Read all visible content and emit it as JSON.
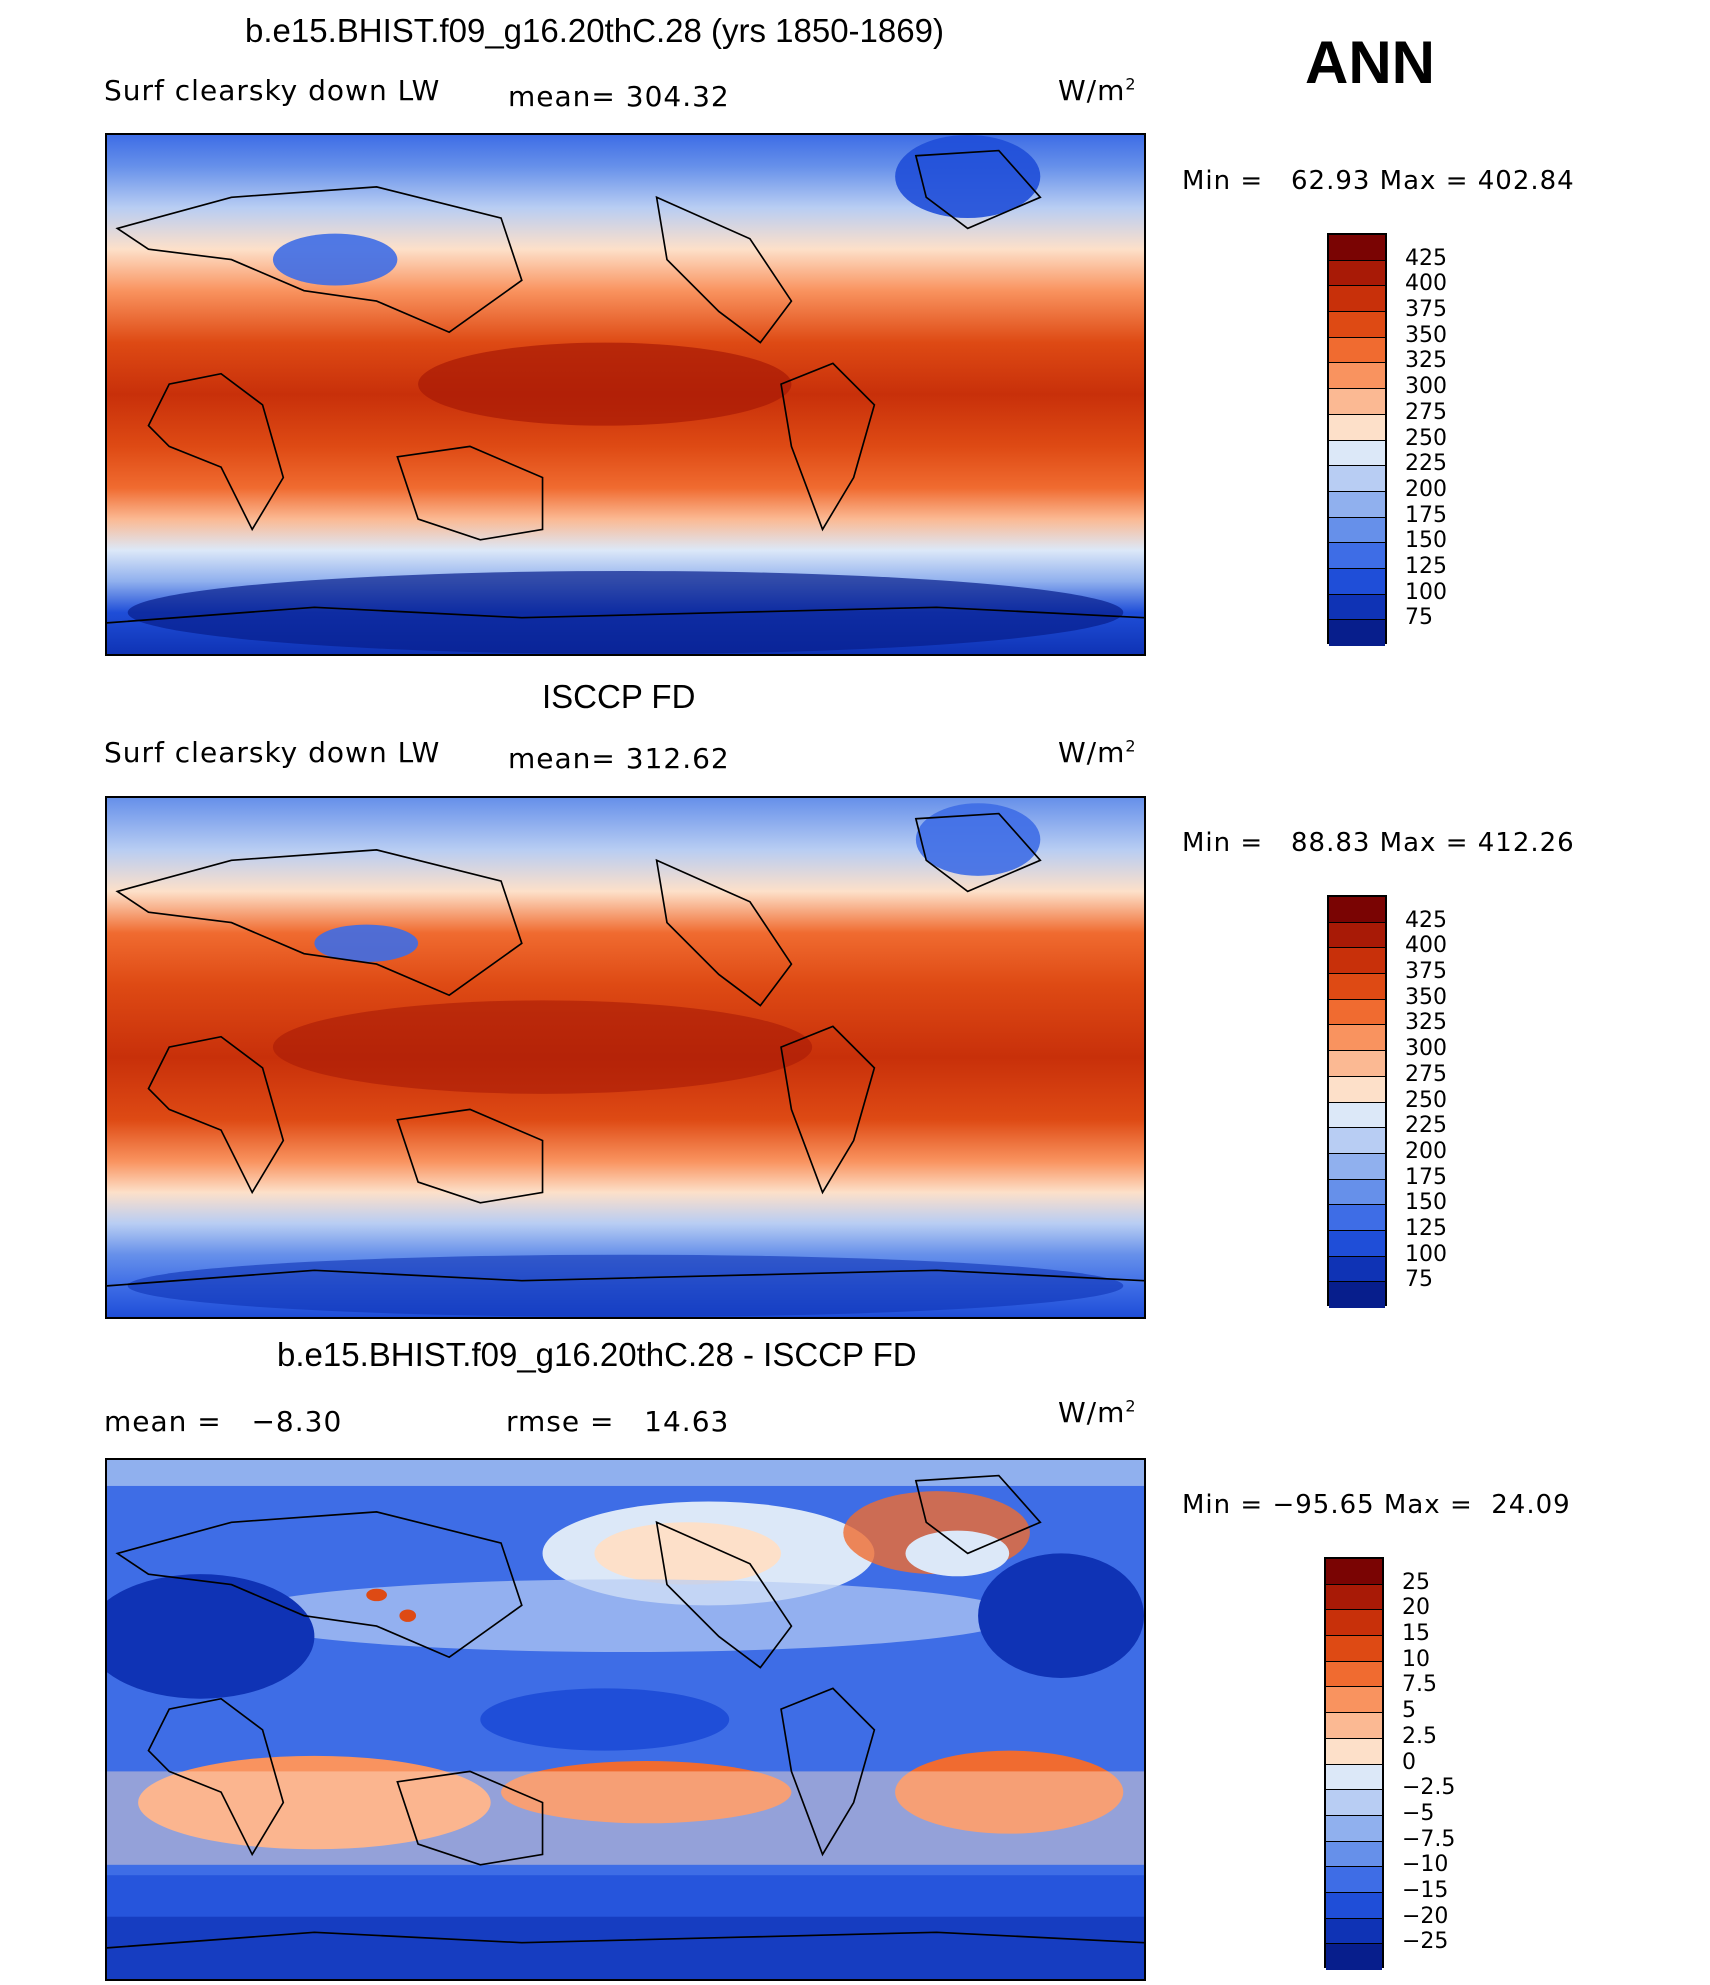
{
  "season": "ANN",
  "units": "W/m",
  "units_exp": "2",
  "panels": [
    {
      "title": "b.e15.BHIST.f09_g16.20thC.28 (yrs 1850-1869)",
      "left_label": "Surf clearsky down LW",
      "center_label": "mean= 304.32",
      "minmax": "Min =   62.93 Max = 402.84",
      "colorbar": {
        "labels": [
          "425",
          "400",
          "375",
          "350",
          "325",
          "300",
          "275",
          "250",
          "225",
          "200",
          "175",
          "150",
          "125",
          "100",
          "75"
        ],
        "colors": [
          "#7a0403",
          "#a81a06",
          "#c8300a",
          "#de4a14",
          "#f06b30",
          "#f9935f",
          "#fbb993",
          "#fde0c9",
          "#dce8f8",
          "#b8cdf3",
          "#90b0ee",
          "#6690ea",
          "#3e6de6",
          "#1f4ed8",
          "#0f33b5",
          "#071e8c"
        ]
      }
    },
    {
      "title": "ISCCP FD",
      "left_label": "Surf clearsky down LW",
      "center_label": "mean= 312.62",
      "minmax": "Min =   88.83 Max = 412.26",
      "colorbar": {
        "labels": [
          "425",
          "400",
          "375",
          "350",
          "325",
          "300",
          "275",
          "250",
          "225",
          "200",
          "175",
          "150",
          "125",
          "100",
          "75"
        ],
        "colors": [
          "#7a0403",
          "#a81a06",
          "#c8300a",
          "#de4a14",
          "#f06b30",
          "#f9935f",
          "#fbb993",
          "#fde0c9",
          "#dce8f8",
          "#b8cdf3",
          "#90b0ee",
          "#6690ea",
          "#3e6de6",
          "#1f4ed8",
          "#0f33b5",
          "#071e8c"
        ]
      }
    },
    {
      "title": "b.e15.BHIST.f09_g16.20thC.28 - ISCCP FD",
      "left_label": "mean =   −8.30",
      "center_label": "rmse =   14.63",
      "minmax": "Min = −95.65 Max =  24.09",
      "colorbar": {
        "labels": [
          "25",
          "20",
          "15",
          "10",
          "7.5",
          "5",
          "2.5",
          "0",
          "−2.5",
          "−5",
          "−7.5",
          "−10",
          "−15",
          "−20",
          "−25"
        ],
        "colors": [
          "#7a0403",
          "#a81a06",
          "#c8300a",
          "#de4a14",
          "#f06b30",
          "#f9935f",
          "#fbb993",
          "#fde0c9",
          "#dce8f8",
          "#b8cdf3",
          "#90b0ee",
          "#6690ea",
          "#3e6de6",
          "#1f4ed8",
          "#0f33b5",
          "#071e8c"
        ]
      }
    }
  ]
}
